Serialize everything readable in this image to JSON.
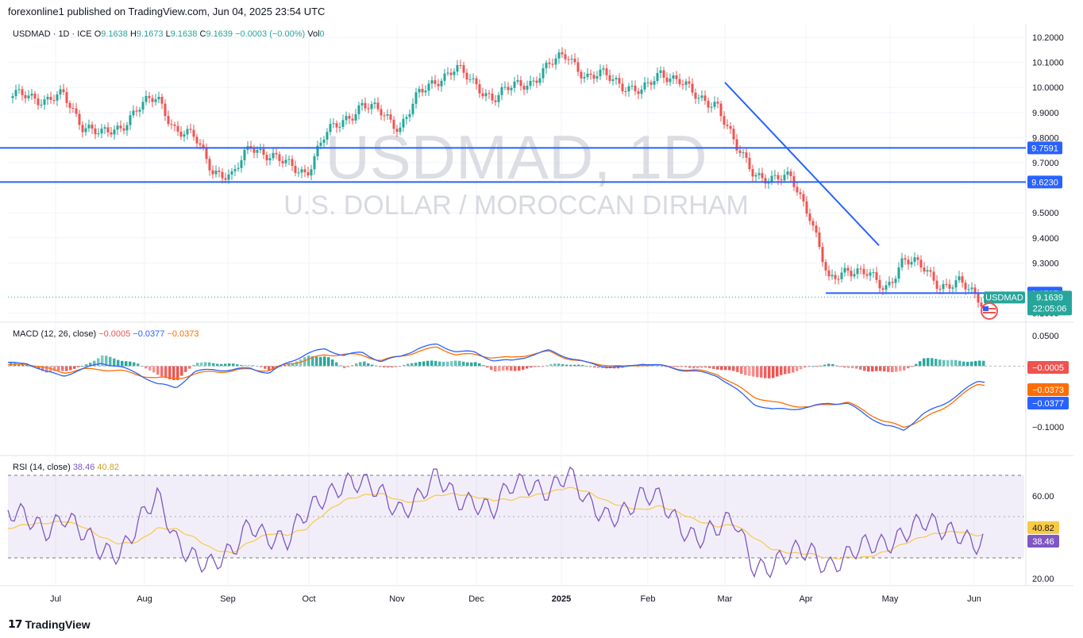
{
  "publisher_line": "forexonline1 published on TradingView.com, Jun 04, 2025 23:54 UTC",
  "brand": {
    "icon": "tradingview-logo-icon",
    "text": "TradingView"
  },
  "legend": {
    "symbol": "USDMAD · 1D · ICE",
    "o_label": "O",
    "o": "9.1638",
    "h_label": "H",
    "h": "9.1673",
    "l_label": "L",
    "l": "9.1638",
    "c_label": "C",
    "c": "9.1639",
    "chg": "−0.0003 (−0.00%)",
    "vol_label": "Vol",
    "vol": "0"
  },
  "watermark": {
    "line1": "USDMAD, 1D",
    "line2": "U.S. DOLLAR / MOROCCAN DIRHAM"
  },
  "colors": {
    "up": "#26a69a",
    "down": "#ef5350",
    "line": "#2962ff",
    "macd_signal": "#ff6d00",
    "rsi": "#7e57c2",
    "rsi_ma": "#f7c948"
  },
  "chart_data": [
    {
      "type": "candlestick",
      "title": "USDMAD, 1D",
      "x_ticks": [
        "Jul",
        "Aug",
        "Sep",
        "Oct",
        "Nov",
        "Dec",
        "2025",
        "Feb",
        "Mar",
        "Apr",
        "May",
        "Jun"
      ],
      "y_ticks": [
        "10.2000",
        "10.1000",
        "10.0000",
        "9.9000",
        "9.8000",
        "9.7000",
        "9.5000",
        "9.4000",
        "9.3000",
        "9.1000"
      ],
      "ylim": [
        9.1,
        10.2
      ],
      "weekly_close": [
        9.96,
        9.98,
        9.94,
        9.97,
        9.85,
        9.81,
        9.84,
        9.92,
        9.96,
        9.83,
        9.8,
        9.67,
        9.64,
        9.77,
        9.73,
        9.69,
        9.66,
        9.81,
        9.87,
        9.93,
        9.9,
        9.84,
        9.97,
        10.03,
        10.08,
        10.01,
        9.96,
        10.0,
        10.02,
        10.09,
        10.13,
        10.04,
        10.05,
        10.01,
        9.98,
        10.06,
        10.03,
        9.95,
        9.94,
        9.76,
        9.66,
        9.63,
        9.64,
        9.49,
        9.22,
        9.28,
        9.26,
        9.19,
        9.32,
        9.28,
        9.21,
        9.22,
        9.16
      ],
      "current_price": "9.1639",
      "countdown": "22:05:06",
      "price_label": "USDMAD",
      "horizontal_levels": [
        {
          "value": 9.7591,
          "label": "9.7591"
        },
        {
          "value": 9.623,
          "label": "9.6230"
        },
        {
          "value": 9.1797,
          "label": "9.1797"
        }
      ],
      "trendline": {
        "from": {
          "x": "2025-03-01",
          "y": 10.02
        },
        "to": {
          "x": "2025-04-29",
          "y": 9.37
        }
      }
    },
    {
      "type": "line",
      "title": "MACD (12, 26, close)",
      "values": {
        "hist": "−0.0005",
        "macd": "−0.0377",
        "signal": "−0.0373"
      },
      "y_ticks": [
        "0.0500",
        "−0.1000"
      ],
      "ylim": [
        -0.12,
        0.065
      ],
      "macd_weekly": [
        0.004,
        0.006,
        -0.01,
        -0.015,
        -0.006,
        0.006,
        -0.002,
        -0.012,
        -0.03,
        -0.035,
        -0.01,
        -0.005,
        -0.007,
        -0.003,
        -0.012,
        0.006,
        0.02,
        0.028,
        0.018,
        0.022,
        0.008,
        0.015,
        0.03,
        0.035,
        0.025,
        0.022,
        0.01,
        0.008,
        0.018,
        0.025,
        0.015,
        0.005,
        0.0,
        -0.003,
        0.005,
        0.0,
        -0.005,
        -0.01,
        -0.015,
        -0.038,
        -0.062,
        -0.072,
        -0.07,
        -0.068,
        -0.06,
        -0.062,
        -0.08,
        -0.098,
        -0.105,
        -0.08,
        -0.065,
        -0.045,
        -0.025
      ],
      "signal_weekly": [
        0.0,
        0.005,
        -0.004,
        -0.01,
        -0.006,
        -0.005,
        -0.008,
        -0.014,
        -0.02,
        -0.02,
        -0.014,
        -0.008,
        -0.009,
        -0.004,
        -0.008,
        0.004,
        0.01,
        0.018,
        0.02,
        0.017,
        0.01,
        0.015,
        0.025,
        0.03,
        0.02,
        0.018,
        0.015,
        0.013,
        0.02,
        0.023,
        0.013,
        0.005,
        0.003,
        -0.002,
        0.003,
        0.0,
        -0.004,
        -0.008,
        -0.012,
        -0.032,
        -0.05,
        -0.06,
        -0.064,
        -0.068,
        -0.062,
        -0.06,
        -0.075,
        -0.092,
        -0.1,
        -0.088,
        -0.072,
        -0.05,
        -0.03
      ]
    },
    {
      "type": "line",
      "title": "RSI (14, close)",
      "values": {
        "rsi": "38.46",
        "ma": "40.82"
      },
      "y_ticks": [
        "60.00",
        "20.00"
      ],
      "ylim": [
        20,
        76
      ],
      "band": [
        30,
        70
      ],
      "rsi_weekly": [
        50,
        48,
        45,
        52,
        40,
        32,
        35,
        48,
        57,
        38,
        33,
        26,
        30,
        48,
        42,
        37,
        50,
        62,
        68,
        64,
        60,
        55,
        60,
        67,
        58,
        60,
        53,
        63,
        66,
        65,
        70,
        55,
        52,
        54,
        58,
        57,
        48,
        40,
        42,
        48,
        28,
        26,
        30,
        34,
        28,
        30,
        34,
        38,
        44,
        46,
        42,
        44,
        38
      ],
      "rsi_ma_weekly": [
        44,
        46,
        47,
        48,
        45,
        40,
        37,
        38,
        44,
        44,
        40,
        34,
        32,
        38,
        42,
        41,
        44,
        52,
        58,
        60,
        61,
        58,
        57,
        60,
        61,
        60,
        58,
        58,
        60,
        62,
        64,
        62,
        58,
        55,
        53,
        55,
        52,
        48,
        45,
        46,
        40,
        34,
        32,
        32,
        30,
        30,
        30,
        33,
        37,
        40,
        42,
        43,
        41
      ]
    }
  ]
}
